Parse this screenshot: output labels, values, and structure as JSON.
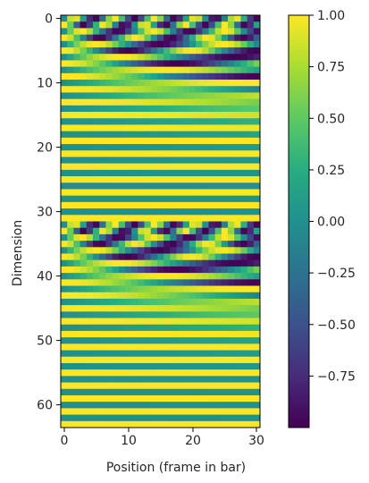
{
  "chart_data": {
    "type": "heatmap",
    "title": "",
    "xlabel": "Position (frame in bar)",
    "ylabel": "Dimension",
    "x_range": [
      0,
      31
    ],
    "y_range": [
      0,
      63
    ],
    "x_ticks": [
      0,
      10,
      20,
      30
    ],
    "y_ticks": [
      0,
      10,
      20,
      30,
      40,
      50,
      60
    ],
    "grid": false,
    "colormap": "viridis",
    "colorbar": {
      "range": [
        -1,
        1
      ],
      "ticks": [
        1.0,
        0.75,
        0.5,
        0.25,
        0.0,
        -0.25,
        -0.5,
        -0.75
      ],
      "tick_labels": [
        "1.00",
        "0.75",
        "0.50",
        "0.25",
        "0.00",
        "−0.25",
        "−0.50",
        "−0.75"
      ]
    },
    "values": {
      "description": "sinusoidal positional encoding, two identical 32-row blocks",
      "formula": "v[d][p] = (d mod 32) even ? sin(p / 10000^((d mod 32)/32)) : cos(p / 10000^((d mod 32 - 1)/32))",
      "rows": 64,
      "cols": 31
    }
  }
}
